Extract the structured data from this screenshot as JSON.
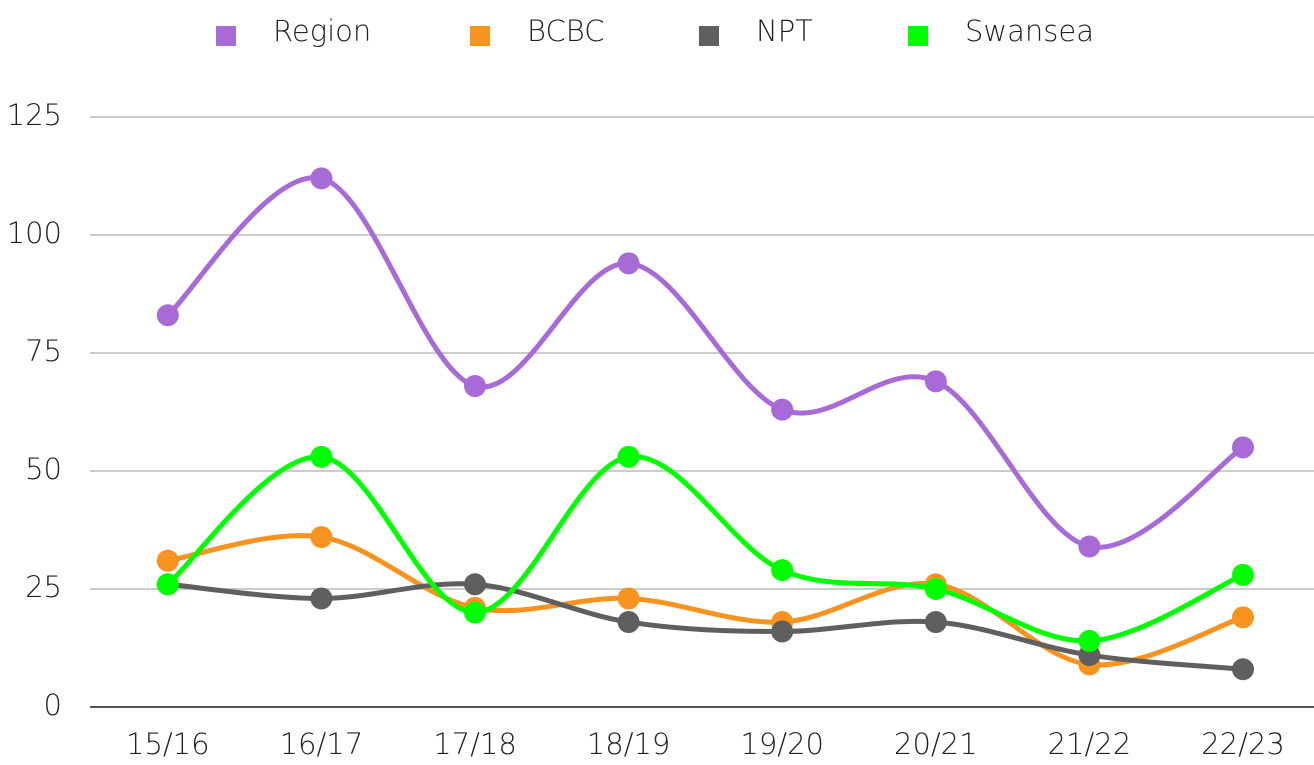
{
  "chart_data": {
    "type": "line",
    "categories": [
      "15/16",
      "16/17",
      "17/18",
      "18/19",
      "19/20",
      "20/21",
      "21/22",
      "22/23"
    ],
    "series": [
      {
        "name": "Region",
        "color": "#a86ad6",
        "values": [
          83,
          112,
          68,
          94,
          63,
          69,
          34,
          55
        ]
      },
      {
        "name": "BCBC",
        "color": "#f7931e",
        "values": [
          31,
          36,
          21,
          23,
          18,
          26,
          9,
          19
        ]
      },
      {
        "name": "NPT",
        "color": "#5f5f5f",
        "values": [
          26,
          23,
          26,
          18,
          16,
          18,
          11,
          8
        ]
      },
      {
        "name": "Swansea",
        "color": "#00ff00",
        "values": [
          26,
          53,
          20,
          53,
          29,
          25,
          14,
          28
        ]
      }
    ],
    "ylim": [
      0,
      125
    ],
    "yticks": [
      0,
      25,
      50,
      75,
      100,
      125
    ],
    "grid": true,
    "legend": "top"
  }
}
